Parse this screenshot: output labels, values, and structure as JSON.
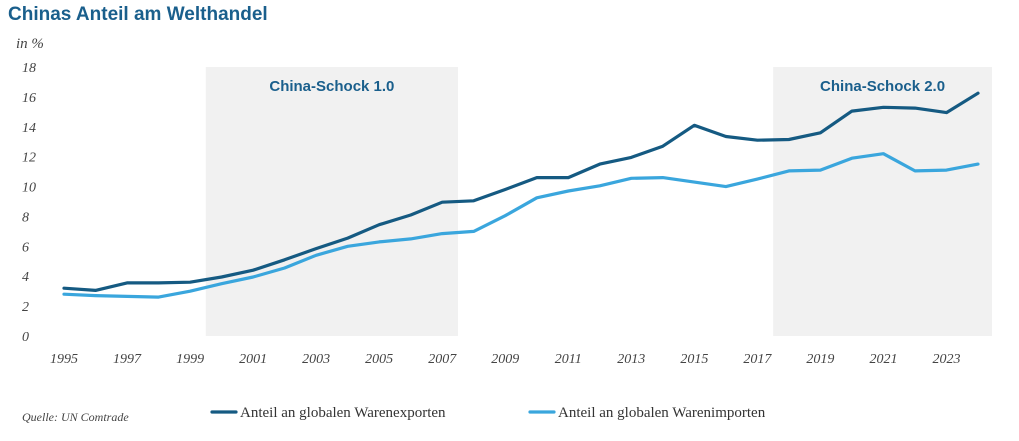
{
  "title": "Chinas Anteil am Welthandel",
  "source": "Quelle: UN Comtrade",
  "chart_data": {
    "type": "line",
    "ylabel": "in %",
    "ylim": [
      0,
      18
    ],
    "yticks": [
      0,
      2,
      4,
      6,
      8,
      10,
      12,
      14,
      16,
      18
    ],
    "xlim": [
      1995,
      2024
    ],
    "xticks": [
      1995,
      1997,
      1999,
      2001,
      2003,
      2005,
      2007,
      2009,
      2011,
      2013,
      2015,
      2017,
      2019,
      2021,
      2023
    ],
    "grid": false,
    "legend": "bottom",
    "x": [
      1995,
      1996,
      1997,
      1998,
      1999,
      2000,
      2001,
      2002,
      2003,
      2004,
      2005,
      2006,
      2007,
      2008,
      2009,
      2010,
      2011,
      2012,
      2013,
      2014,
      2015,
      2016,
      2017,
      2018,
      2019,
      2020,
      2021,
      2022,
      2023,
      2024
    ],
    "series": [
      {
        "name": "Anteil an globalen Warenexporten",
        "color": "#155a82",
        "values": [
          3.2,
          3.05,
          3.55,
          3.55,
          3.6,
          3.95,
          4.4,
          5.1,
          5.85,
          6.55,
          7.45,
          8.1,
          8.95,
          9.05,
          9.8,
          10.6,
          10.6,
          11.5,
          11.95,
          12.7,
          14.1,
          13.35,
          13.1,
          13.15,
          13.6,
          15.05,
          15.3,
          15.25,
          14.95,
          16.25
        ]
      },
      {
        "name": "Anteil an globalen Warenimporten",
        "color": "#3aa6dd",
        "values": [
          2.8,
          2.7,
          2.65,
          2.6,
          3.0,
          3.5,
          3.95,
          4.55,
          5.4,
          6.0,
          6.3,
          6.5,
          6.85,
          7.0,
          8.05,
          9.25,
          9.7,
          10.05,
          10.55,
          10.6,
          10.3,
          10.0,
          10.5,
          11.05,
          11.1,
          11.9,
          12.2,
          11.05,
          11.1,
          11.5
        ]
      }
    ],
    "bands": [
      {
        "label": "China-Schock 1.0",
        "from": 1999.5,
        "to": 2007.5,
        "color": "#f1f1f1"
      },
      {
        "label": "China-Schock 2.0",
        "from": 2017.5,
        "to": 2024.5,
        "color": "#f1f1f1"
      }
    ]
  }
}
